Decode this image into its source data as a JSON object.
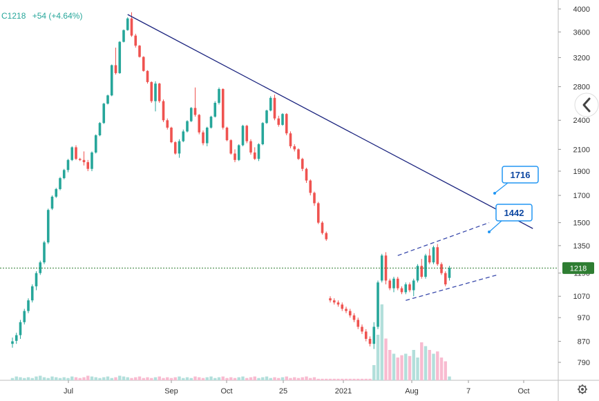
{
  "header": {
    "symbol": "C1218",
    "change": "+54 (+4.64%)",
    "change_color": "#26a69a"
  },
  "price_badge": {
    "label": "1218",
    "value": 1218,
    "color": "#2e7d32"
  },
  "gear_icon": "gear-icon",
  "back_icon": "chevron-left-icon",
  "colors": {
    "up": "#26a69a",
    "down": "#ef5350",
    "up_volume": "#b2dfdb",
    "down_volume": "#f8bbd0",
    "trendline": "#1a237e",
    "channel": "#3949ab",
    "price_line": "#2e7d32",
    "callout_border": "#2196f3",
    "callout_text": "#0d47a1"
  },
  "chart_data": {
    "type": "candlestick",
    "yaxis": {
      "scale": "log",
      "ticks": [
        "4000",
        "3600",
        "3200",
        "2800",
        "2400",
        "2100",
        "1900",
        "1700",
        "1500",
        "1350",
        "1190",
        "1070",
        "970",
        "870",
        "790"
      ],
      "range": [
        740,
        4000
      ]
    },
    "xaxis": {
      "ticks": [
        "Jul",
        "Sep",
        "Oct",
        "25",
        "2021",
        "Aug",
        "7",
        "Oct"
      ]
    },
    "candles": [
      [
        860,
        845,
        885,
        870
      ],
      [
        872,
        860,
        905,
        895
      ],
      [
        895,
        880,
        960,
        950
      ],
      [
        950,
        940,
        1010,
        1000
      ],
      [
        1000,
        990,
        1060,
        1050
      ],
      [
        1050,
        1040,
        1130,
        1120
      ],
      [
        1120,
        1100,
        1200,
        1190
      ],
      [
        1190,
        1180,
        1260,
        1250
      ],
      [
        1250,
        1240,
        1380,
        1370
      ],
      [
        1370,
        1360,
        1600,
        1590
      ],
      [
        1600,
        1590,
        1700,
        1690
      ],
      [
        1690,
        1680,
        1760,
        1750
      ],
      [
        1750,
        1740,
        1850,
        1840
      ],
      [
        1840,
        1830,
        1920,
        1910
      ],
      [
        1910,
        1890,
        2010,
        2000
      ],
      [
        2000,
        1990,
        2130,
        2120
      ],
      [
        2120,
        2000,
        2140,
        2010
      ],
      [
        2010,
        1990,
        2020,
        2000
      ],
      [
        2000,
        1950,
        2080,
        1980
      ],
      [
        1980,
        1900,
        2000,
        1920
      ],
      [
        1920,
        1900,
        2080,
        2070
      ],
      [
        2070,
        2060,
        2250,
        2240
      ],
      [
        2240,
        2230,
        2380,
        2370
      ],
      [
        2370,
        2360,
        2600,
        2590
      ],
      [
        2590,
        2580,
        2700,
        2690
      ],
      [
        2690,
        2680,
        3100,
        3090
      ],
      [
        3090,
        2960,
        3350,
        2980
      ],
      [
        2980,
        2970,
        3450,
        3440
      ],
      [
        3440,
        3430,
        3640,
        3630
      ],
      [
        3630,
        3620,
        3850,
        3830
      ],
      [
        3830,
        3520,
        3940,
        3540
      ],
      [
        3540,
        3350,
        3570,
        3380
      ],
      [
        3380,
        3200,
        3390,
        3210
      ],
      [
        3210,
        3000,
        3220,
        3010
      ],
      [
        3010,
        2840,
        3020,
        2860
      ],
      [
        2860,
        2600,
        2870,
        2620
      ],
      [
        2620,
        2500,
        2870,
        2840
      ],
      [
        2840,
        2600,
        2850,
        2620
      ],
      [
        2620,
        2380,
        2640,
        2400
      ],
      [
        2400,
        2300,
        2420,
        2320
      ],
      [
        2320,
        2160,
        2330,
        2170
      ],
      [
        2170,
        2050,
        2180,
        2060
      ],
      [
        2060,
        2020,
        2200,
        2180
      ],
      [
        2180,
        2170,
        2300,
        2280
      ],
      [
        2280,
        2270,
        2400,
        2390
      ],
      [
        2390,
        2380,
        2550,
        2540
      ],
      [
        2540,
        2440,
        2790,
        2460
      ],
      [
        2460,
        2250,
        2470,
        2270
      ],
      [
        2270,
        2140,
        2290,
        2160
      ],
      [
        2160,
        2130,
        2330,
        2320
      ],
      [
        2320,
        2310,
        2450,
        2440
      ],
      [
        2440,
        2430,
        2620,
        2600
      ],
      [
        2600,
        2580,
        2790,
        2770
      ],
      [
        2770,
        2300,
        2780,
        2320
      ],
      [
        2320,
        2180,
        2330,
        2190
      ],
      [
        2190,
        2050,
        2200,
        2060
      ],
      [
        2060,
        1980,
        2100,
        2000
      ],
      [
        2000,
        1990,
        2150,
        2140
      ],
      [
        2140,
        2130,
        2350,
        2340
      ],
      [
        2340,
        2160,
        2350,
        2180
      ],
      [
        2180,
        2050,
        2200,
        2070
      ],
      [
        2070,
        2000,
        2120,
        2010
      ],
      [
        2010,
        1990,
        2160,
        2150
      ],
      [
        2150,
        2140,
        2380,
        2370
      ],
      [
        2370,
        2360,
        2520,
        2510
      ],
      [
        2510,
        2500,
        2680,
        2660
      ],
      [
        2660,
        2400,
        2700,
        2420
      ],
      [
        2420,
        2330,
        2450,
        2350
      ],
      [
        2350,
        2340,
        2480,
        2470
      ],
      [
        2470,
        2240,
        2480,
        2260
      ],
      [
        2260,
        2110,
        2280,
        2130
      ],
      [
        2130,
        2080,
        2150,
        2100
      ],
      [
        2100,
        2000,
        2110,
        2010
      ],
      [
        2010,
        1900,
        2020,
        1920
      ],
      [
        1920,
        1800,
        1930,
        1820
      ],
      [
        1820,
        1700,
        1830,
        1720
      ],
      [
        1720,
        1620,
        1730,
        1640
      ],
      [
        1640,
        1490,
        1650,
        1500
      ],
      [
        1500,
        1420,
        1510,
        1430
      ],
      [
        1430,
        1380,
        1440,
        1390
      ],
      [
        1060,
        1040,
        1070,
        1050
      ],
      [
        1050,
        1030,
        1060,
        1040
      ],
      [
        1040,
        1020,
        1050,
        1030
      ],
      [
        1030,
        1000,
        1040,
        1010
      ],
      [
        1010,
        990,
        1020,
        1000
      ],
      [
        1000,
        970,
        1010,
        980
      ],
      [
        980,
        950,
        990,
        960
      ],
      [
        960,
        920,
        970,
        930
      ],
      [
        930,
        900,
        940,
        910
      ],
      [
        910,
        870,
        920,
        880
      ],
      [
        880,
        850,
        890,
        860
      ],
      [
        860,
        840,
        950,
        930
      ],
      [
        930,
        920,
        1150,
        1140
      ],
      [
        1150,
        1140,
        1300,
        1290
      ],
      [
        1290,
        1130,
        1310,
        1150
      ],
      [
        1150,
        1100,
        1160,
        1110
      ],
      [
        1110,
        1090,
        1170,
        1160
      ],
      [
        1160,
        1100,
        1170,
        1110
      ],
      [
        1110,
        1080,
        1120,
        1090
      ],
      [
        1090,
        1080,
        1140,
        1130
      ],
      [
        1130,
        1090,
        1140,
        1100
      ],
      [
        1100,
        1070,
        1160,
        1150
      ],
      [
        1150,
        1140,
        1240,
        1230
      ],
      [
        1230,
        1160,
        1270,
        1170
      ],
      [
        1170,
        1160,
        1300,
        1290
      ],
      [
        1290,
        1240,
        1330,
        1250
      ],
      [
        1250,
        1240,
        1350,
        1340
      ],
      [
        1340,
        1230,
        1360,
        1240
      ],
      [
        1240,
        1180,
        1250,
        1190
      ],
      [
        1190,
        1120,
        1200,
        1130
      ],
      [
        1164,
        1150,
        1230,
        1218
      ]
    ],
    "volume": [
      3,
      5,
      4,
      3,
      4,
      3,
      5,
      6,
      4,
      3,
      5,
      4,
      3,
      4,
      3,
      5,
      4,
      3,
      4,
      6,
      5,
      4,
      3,
      4,
      5,
      3,
      4,
      6,
      5,
      4,
      3,
      4,
      5,
      3,
      4,
      3,
      4,
      5,
      3,
      4,
      3,
      4,
      5,
      3,
      4,
      3,
      5,
      4,
      3,
      4,
      5,
      3,
      4,
      5,
      3,
      4,
      3,
      4,
      5,
      3,
      4,
      5,
      3,
      4,
      5,
      3,
      4,
      3,
      4,
      5,
      3,
      4,
      3,
      4,
      5,
      3,
      4,
      2,
      2,
      2,
      2,
      2,
      2,
      2,
      2,
      2,
      2,
      2,
      2,
      2,
      2,
      20,
      60,
      100,
      55,
      40,
      35,
      30,
      33,
      35,
      32,
      40,
      30,
      50,
      45,
      40,
      35,
      38,
      30,
      25,
      5
    ],
    "trendline": {
      "from": {
        "index": 29,
        "price": 3900
      },
      "to": {
        "index": 131,
        "price": 1460
      }
    },
    "channel_upper": {
      "from": {
        "index": 97,
        "price": 1290
      },
      "to": {
        "index": 120,
        "price": 1500
      }
    },
    "channel_lower": {
      "from": {
        "index": 99,
        "price": 1050
      },
      "to": {
        "index": 122,
        "price": 1180
      }
    },
    "callouts": [
      {
        "label": "1716",
        "price": 1716
      },
      {
        "label": "1442",
        "price": 1442
      }
    ],
    "last_price": 1218
  }
}
